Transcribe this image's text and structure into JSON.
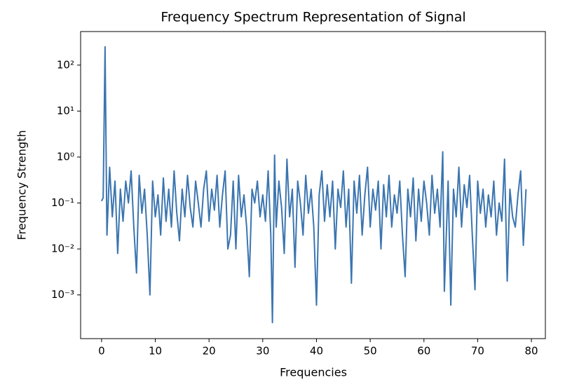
{
  "chart_data": {
    "type": "line",
    "title": "Frequency Spectrum Representation of Signal",
    "x_label": "Frequencies",
    "y_label": "Frequency Strength",
    "yscale": "log",
    "grid": false,
    "xlim": [
      -3.9,
      82.6
    ],
    "xticks": [
      0,
      10,
      20,
      30,
      40,
      50,
      60,
      70,
      80
    ],
    "ylim": [
      0.000112,
      537
    ],
    "yticks": [
      {
        "value": 0.001,
        "label": "10⁻³"
      },
      {
        "value": 0.01,
        "label": "10⁻²"
      },
      {
        "value": 0.1,
        "label": "10⁻¹"
      },
      {
        "value": 1,
        "label": "10⁰"
      },
      {
        "value": 10,
        "label": "10¹"
      },
      {
        "value": 100,
        "label": "10²"
      }
    ],
    "x": [
      0,
      0.3,
      0.65,
      1.0,
      1.5,
      2.0,
      2.5,
      3.0,
      3.5,
      4.0,
      4.5,
      5.0,
      5.5,
      6.0,
      6.5,
      7.0,
      7.5,
      8.0,
      8.5,
      9.0,
      9.5,
      10.0,
      10.5,
      11.0,
      11.5,
      12.0,
      12.5,
      13.0,
      13.5,
      14.0,
      14.5,
      15.0,
      15.5,
      16.0,
      16.5,
      17.0,
      17.5,
      18.0,
      18.5,
      19.0,
      19.5,
      20.0,
      20.5,
      21.0,
      21.5,
      22.0,
      22.5,
      23.0,
      23.5,
      24.0,
      24.5,
      25.0,
      25.5,
      26.0,
      26.5,
      27.0,
      27.5,
      28.0,
      28.5,
      29.0,
      29.5,
      30.0,
      30.5,
      31.0,
      31.5,
      31.8,
      32.2,
      32.5,
      33.0,
      33.5,
      34.0,
      34.5,
      35.0,
      35.5,
      36.0,
      36.5,
      37.0,
      37.5,
      38.0,
      38.5,
      39.0,
      39.5,
      40.0,
      40.5,
      41.0,
      41.5,
      42.0,
      42.5,
      43.0,
      43.5,
      44.0,
      44.5,
      45.0,
      45.5,
      46.0,
      46.5,
      47.0,
      47.5,
      48.0,
      48.5,
      49.0,
      49.5,
      50.0,
      50.5,
      51.0,
      51.5,
      52.0,
      52.5,
      53.0,
      53.5,
      54.0,
      54.5,
      55.0,
      55.5,
      56.0,
      56.5,
      57.0,
      57.5,
      58.0,
      58.5,
      59.0,
      59.5,
      60.0,
      60.5,
      61.0,
      61.5,
      62.0,
      62.5,
      63.0,
      63.5,
      63.8,
      64.5,
      65.0,
      65.5,
      66.0,
      66.5,
      67.0,
      67.5,
      68.0,
      68.5,
      69.0,
      69.5,
      70.0,
      70.5,
      71.0,
      71.5,
      72.0,
      72.5,
      73.0,
      73.5,
      74.0,
      74.5,
      75.0,
      75.5,
      76.0,
      76.5,
      77.0,
      77.5,
      78.0,
      78.5,
      79.0
    ],
    "series": [
      {
        "color": "#3b75b0",
        "values": [
          0.11,
          0.13,
          250,
          0.02,
          0.6,
          0.05,
          0.3,
          0.008,
          0.2,
          0.04,
          0.3,
          0.1,
          0.5,
          0.03,
          0.003,
          0.4,
          0.06,
          0.2,
          0.02,
          0.001,
          0.3,
          0.05,
          0.15,
          0.02,
          0.35,
          0.04,
          0.2,
          0.03,
          0.5,
          0.06,
          0.015,
          0.2,
          0.05,
          0.4,
          0.08,
          0.03,
          0.3,
          0.1,
          0.03,
          0.2,
          0.5,
          0.04,
          0.2,
          0.07,
          0.4,
          0.03,
          0.15,
          0.5,
          0.01,
          0.02,
          0.3,
          0.01,
          0.4,
          0.05,
          0.15,
          0.03,
          0.0025,
          0.2,
          0.1,
          0.3,
          0.05,
          0.15,
          0.04,
          0.5,
          0.02,
          0.00025,
          1.1,
          0.03,
          0.3,
          0.08,
          0.008,
          0.9,
          0.05,
          0.2,
          0.004,
          0.3,
          0.1,
          0.02,
          0.4,
          0.06,
          0.2,
          0.03,
          0.0006,
          0.15,
          0.5,
          0.04,
          0.25,
          0.05,
          0.3,
          0.01,
          0.2,
          0.08,
          0.5,
          0.03,
          0.2,
          0.0018,
          0.3,
          0.06,
          0.4,
          0.02,
          0.15,
          0.6,
          0.03,
          0.2,
          0.07,
          0.3,
          0.01,
          0.25,
          0.05,
          0.4,
          0.03,
          0.15,
          0.06,
          0.3,
          0.02,
          0.0025,
          0.2,
          0.05,
          0.35,
          0.015,
          0.2,
          0.04,
          0.3,
          0.1,
          0.02,
          0.4,
          0.06,
          0.2,
          0.03,
          1.3,
          0.0012,
          0.3,
          0.0006,
          0.2,
          0.05,
          0.6,
          0.03,
          0.25,
          0.08,
          0.4,
          0.02,
          0.0013,
          0.3,
          0.06,
          0.2,
          0.03,
          0.15,
          0.05,
          0.3,
          0.02,
          0.1,
          0.04,
          0.9,
          0.002,
          0.2,
          0.05,
          0.03,
          0.15,
          0.5,
          0.012,
          0.2
        ]
      }
    ]
  }
}
